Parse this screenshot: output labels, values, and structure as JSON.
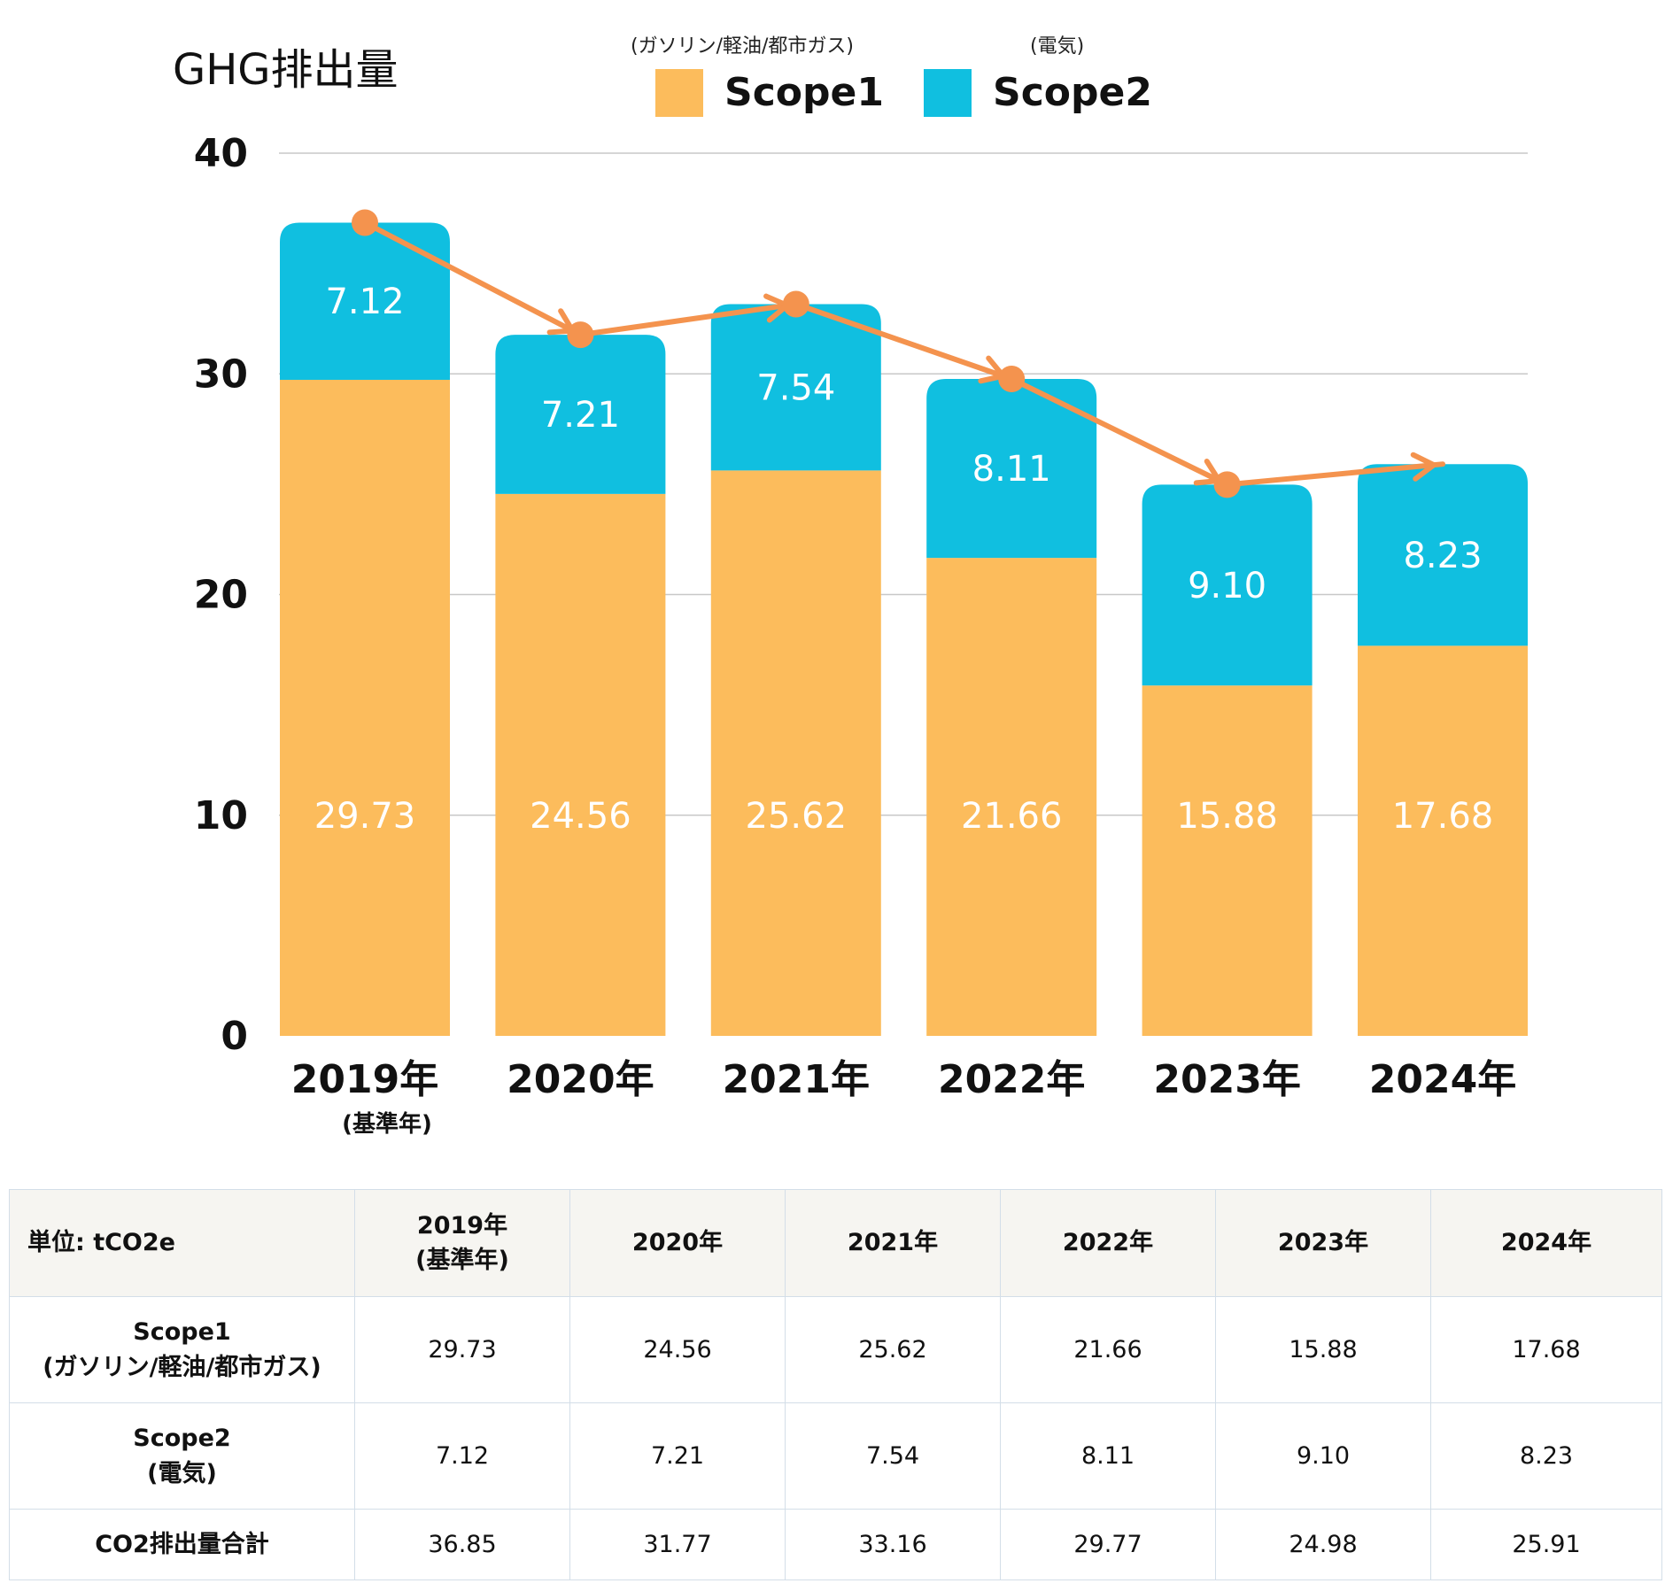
{
  "chart_data": {
    "type": "bar",
    "stacked": true,
    "title": "GHG排出量",
    "categories": [
      "2019年",
      "2020年",
      "2021年",
      "2022年",
      "2023年",
      "2024年"
    ],
    "category_notes": [
      "(基準年)",
      "",
      "",
      "",
      "",
      ""
    ],
    "series": [
      {
        "name": "Scope1",
        "note": "(ガソリン/軽油/都市ガス)",
        "color": "#fcbc5c",
        "values": [
          29.73,
          24.56,
          25.62,
          21.66,
          15.88,
          17.68
        ],
        "labels": [
          "29.73",
          "24.56",
          "25.62",
          "21.66",
          "15.88",
          "17.68"
        ]
      },
      {
        "name": "Scope2",
        "note": "(電気)",
        "color": "#10bfe0",
        "values": [
          7.12,
          7.21,
          7.54,
          8.11,
          9.1,
          8.23
        ],
        "labels": [
          "7.12",
          "7.21",
          "7.54",
          "8.11",
          "9.10",
          "8.23"
        ]
      }
    ],
    "trend_line": {
      "color": "#f4934e",
      "values": [
        36.85,
        31.77,
        33.16,
        29.77,
        24.98,
        25.91
      ]
    },
    "ylim": [
      0,
      40
    ],
    "yticks": [
      "0",
      "10",
      "20",
      "30",
      "40"
    ],
    "grid": true,
    "legend_position": "top"
  },
  "table": {
    "corner": "単位: tCO2e",
    "headers": [
      "2019年\n(基準年)",
      "2020年",
      "2021年",
      "2022年",
      "2023年",
      "2024年"
    ],
    "rows": [
      {
        "label": "Scope1\n(ガソリン/軽油/都市ガス)",
        "values": [
          "29.73",
          "24.56",
          "25.62",
          "21.66",
          "15.88",
          "17.68"
        ]
      },
      {
        "label": "Scope2\n(電気)",
        "values": [
          "7.12",
          "7.21",
          "7.54",
          "8.11",
          "9.10",
          "8.23"
        ]
      },
      {
        "label": "CO2排出量合計",
        "values": [
          "36.85",
          "31.77",
          "33.16",
          "29.77",
          "24.98",
          "25.91"
        ]
      }
    ]
  }
}
